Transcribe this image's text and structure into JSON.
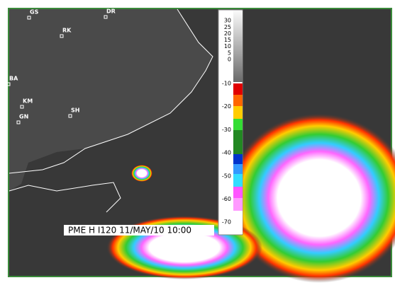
{
  "stations": [
    {
      "label": "GS"
    },
    {
      "label": "DR"
    },
    {
      "label": "RK"
    },
    {
      "label": "BA"
    },
    {
      "label": "KM"
    },
    {
      "label": "GN"
    },
    {
      "label": "SH"
    }
  ],
  "colorbar": {
    "ticks": [
      30,
      25,
      20,
      15,
      10,
      5,
      0,
      -10,
      -20,
      -30,
      -40,
      -50,
      -60,
      -70
    ]
  },
  "caption": "PME  H  I120  11/MAY/10  10:00"
}
